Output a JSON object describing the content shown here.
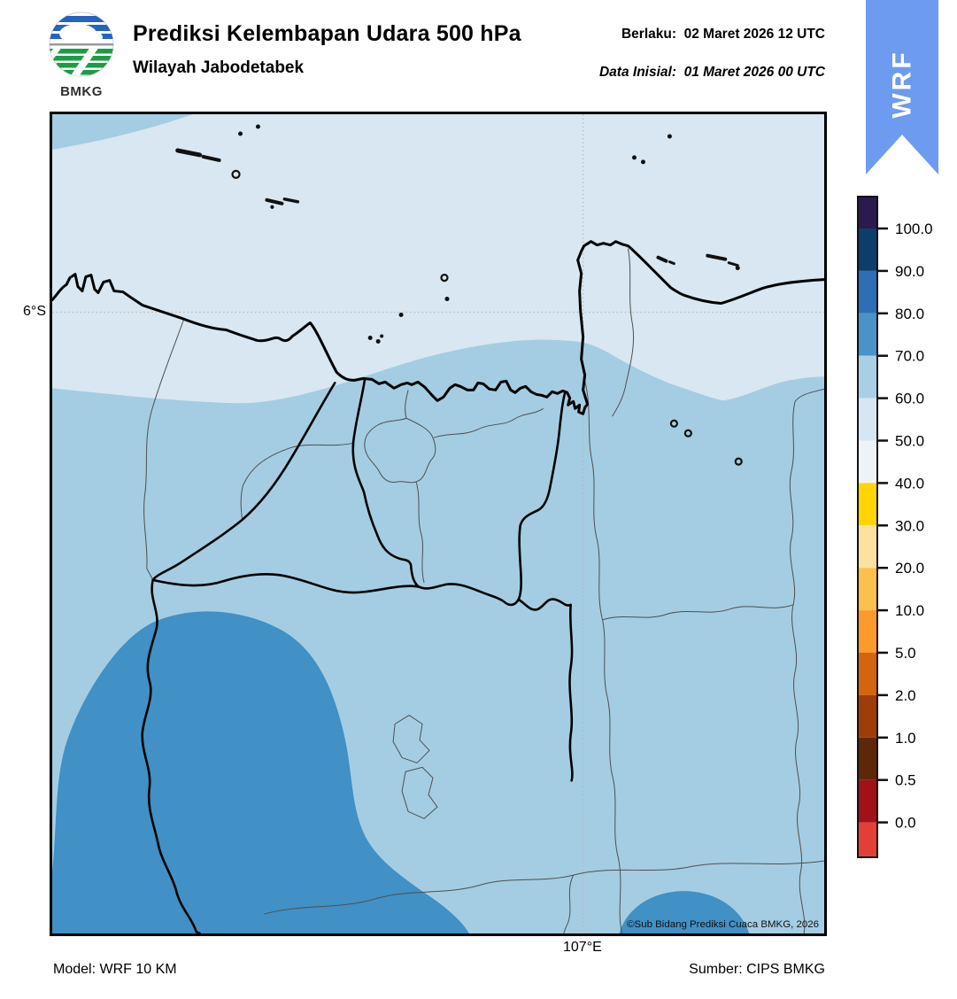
{
  "header": {
    "title": "Prediksi Kelembapan Udara 500 hPa",
    "subtitle": "Wilayah Jabodetabek",
    "valid_line": "Berlaku:  02 Maret 2026 12 UTC",
    "init_line": "Data Inisial:  01 Maret 2026 00 UTC",
    "logo_text": "BMKG"
  },
  "ribbon": {
    "label": "WRF",
    "color": "#6d9bef"
  },
  "map": {
    "y_axis_label": "6°S",
    "x_axis_label": "107°E",
    "copyright": "©Sub Bidang Prediksi Cuaca BMKG, 2026",
    "colors": {
      "rh_50_60": "#d8e7f2",
      "rh_60_70": "#a4cde3",
      "rh_70_80": "#4190c6",
      "coastline": "#000000",
      "admin_thin": "#4f4f4f",
      "gridline": "#b8b8b8"
    }
  },
  "colorbar": {
    "tick_labels": [
      "100.0",
      "90.0",
      "80.0",
      "70.0",
      "60.0",
      "50.0",
      "40.0",
      "30.0",
      "20.0",
      "10.0",
      "5.0",
      "2.0",
      "1.0",
      "0.5",
      "0.0"
    ],
    "segment_colors": [
      "#2b1a4e",
      "#0d3d6b",
      "#2e6eb4",
      "#4a92c7",
      "#a9cfe5",
      "#d7e6f3",
      "#f0f3f6",
      "#ffd503",
      "#fbe2a0",
      "#fdc04f",
      "#fa9b2c",
      "#d2650e",
      "#9e3d08",
      "#5e2807",
      "#a01218",
      "#e14038"
    ]
  },
  "footer": {
    "model": "Model: WRF 10 KM",
    "source": "Sumber: CIPS BMKG"
  }
}
